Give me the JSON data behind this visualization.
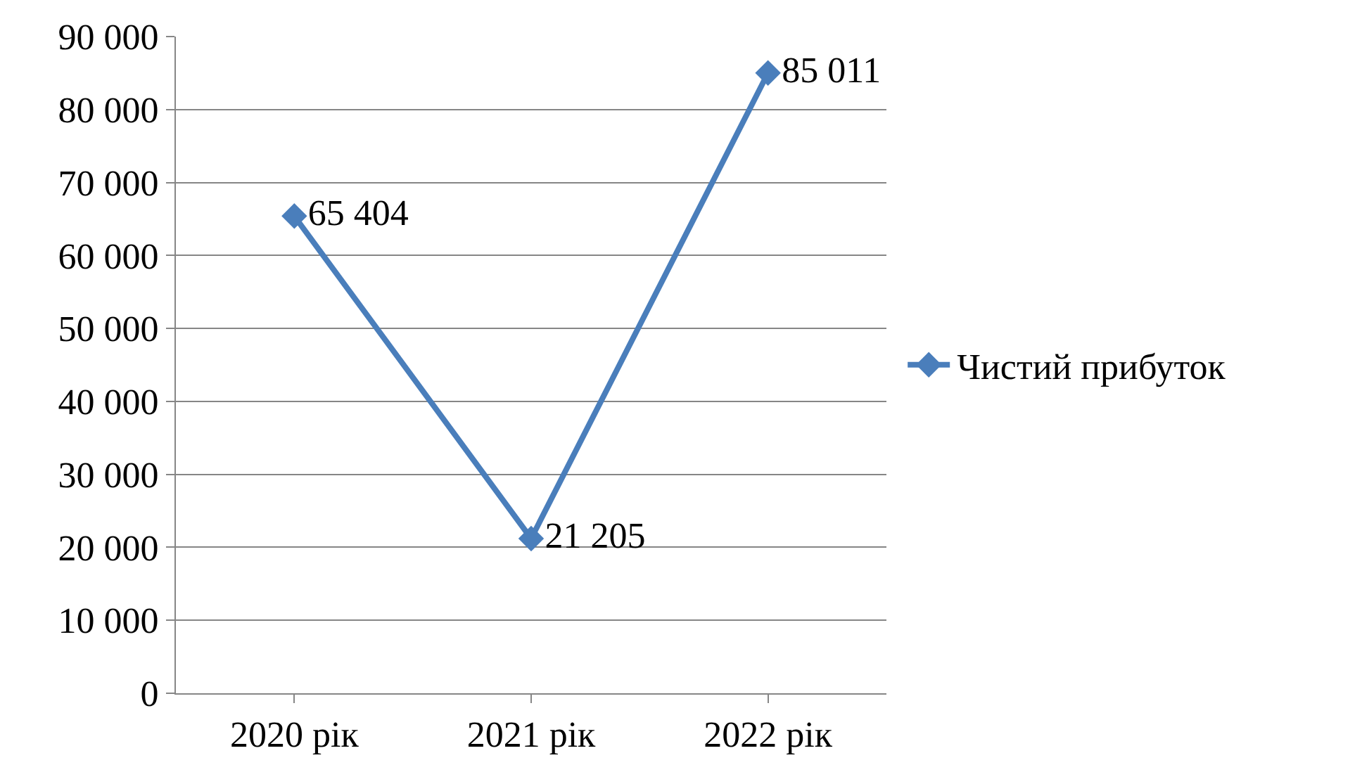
{
  "chart_data": {
    "type": "line",
    "categories": [
      "2020 рік",
      "2021 рік",
      "2022 рік"
    ],
    "series": [
      {
        "name": "Чистий прибуток",
        "color": "#4a7ebb",
        "values": [
          65404,
          21205,
          85011
        ],
        "value_labels": [
          "65 404",
          "21 205",
          "85 011"
        ]
      }
    ],
    "ylim": [
      0,
      90000
    ],
    "yticks": [
      {
        "value": 0,
        "label": "0"
      },
      {
        "value": 10000,
        "label": "10 000"
      },
      {
        "value": 20000,
        "label": "20 000"
      },
      {
        "value": 30000,
        "label": "30 000"
      },
      {
        "value": 40000,
        "label": "40 000"
      },
      {
        "value": 50000,
        "label": "50 000"
      },
      {
        "value": 60000,
        "label": "60 000"
      },
      {
        "value": 70000,
        "label": "70 000"
      },
      {
        "value": 80000,
        "label": "80 000"
      },
      {
        "value": 90000,
        "label": "90 000"
      }
    ],
    "grid": "y",
    "legend": "right",
    "marker": "diamond",
    "line_style": "solid"
  }
}
